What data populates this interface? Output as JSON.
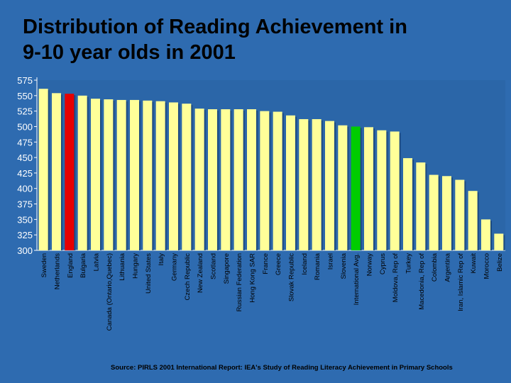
{
  "title_line1": "Distribution of Reading Achievement in",
  "title_line2": "9-10 year olds in 2001",
  "source": "Source: PIRLS 2001 International Report: IEA's Study of Reading Literacy Achievement in Primary Schools",
  "colors": {
    "background": "#2e6bb0",
    "plot_area": "#2b66a8",
    "bar_default": "#ffff99",
    "bar_england": "#e60000",
    "bar_international_avg": "#00cc00"
  },
  "chart_data": {
    "type": "bar",
    "title": "Distribution of Reading Achievement in 9-10 year olds in 2001",
    "xlabel": "",
    "ylabel": "",
    "ylim": [
      300,
      575
    ],
    "yticks": [
      300,
      325,
      350,
      375,
      400,
      425,
      450,
      475,
      500,
      525,
      550,
      575
    ],
    "grid": false,
    "categories": [
      "Sweden",
      "Netherlands",
      "England",
      "Bulgaria",
      "Latvia",
      "Canada (Ontario,Quebec)",
      "Lithuania",
      "Hungary",
      "United States",
      "Italy",
      "Germany",
      "Czech Republic",
      "New Zealand",
      "Scotland",
      "Singapore",
      "Russian Federation",
      "Hong Kong SAR",
      "France",
      "Greece",
      "Slovak Republic",
      "Iceland",
      "Romania",
      "Israel",
      "Slovenia",
      "International Avg.",
      "Norway",
      "Cyprus",
      "Moldova, Rep of",
      "Turkey",
      "Macedonia, Rep of",
      "Colombia",
      "Argentina",
      "Iran, Islamic Rep of",
      "Kuwait",
      "Morocco",
      "Belize"
    ],
    "values": [
      561,
      554,
      553,
      550,
      545,
      544,
      543,
      543,
      542,
      541,
      539,
      537,
      529,
      528,
      528,
      528,
      528,
      525,
      524,
      518,
      512,
      512,
      509,
      502,
      500,
      499,
      494,
      492,
      449,
      442,
      422,
      420,
      414,
      396,
      350,
      327
    ],
    "highlights": {
      "England": "bar_england",
      "International Avg.": "bar_international_avg"
    }
  }
}
